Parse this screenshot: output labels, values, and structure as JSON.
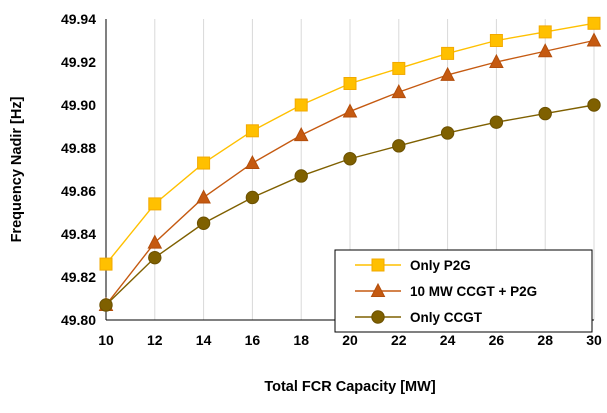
{
  "chart_data": {
    "type": "line",
    "title": "",
    "xlabel": "Total FCR Capacity [MW]",
    "ylabel": "Frequency Nadir [Hz]",
    "xlim": [
      10,
      30
    ],
    "ylim": [
      49.8,
      49.94
    ],
    "x_ticks": [
      "10",
      "12",
      "14",
      "16",
      "18",
      "20",
      "22",
      "24",
      "26",
      "28",
      "30"
    ],
    "y_ticks": [
      "49.80",
      "49.82",
      "49.84",
      "49.86",
      "49.88",
      "49.90",
      "49.92",
      "49.94"
    ],
    "grid": {
      "vertical": true,
      "horizontal": false
    },
    "legend_position": "bottom-right",
    "x": [
      10,
      12,
      14,
      16,
      18,
      20,
      22,
      24,
      26,
      28,
      30
    ],
    "series": [
      {
        "name": "Only P2G",
        "marker": "square",
        "color": "#FFC000",
        "marker_edge": "#F2A900",
        "values": [
          49.826,
          49.854,
          49.873,
          49.888,
          49.9,
          49.91,
          49.917,
          49.924,
          49.93,
          49.934,
          49.938
        ]
      },
      {
        "name": "10 MW CCGT + P2G",
        "marker": "triangle",
        "color": "#C55A11",
        "marker_edge": "#B34E0C",
        "values": [
          49.807,
          49.836,
          49.857,
          49.873,
          49.886,
          49.897,
          49.906,
          49.914,
          49.92,
          49.925,
          49.93
        ]
      },
      {
        "name": "Only CCGT",
        "marker": "circle",
        "color": "#7F6000",
        "marker_edge": "#6B5000",
        "values": [
          49.807,
          49.829,
          49.845,
          49.857,
          49.867,
          49.875,
          49.881,
          49.887,
          49.892,
          49.896,
          49.9
        ]
      }
    ]
  }
}
